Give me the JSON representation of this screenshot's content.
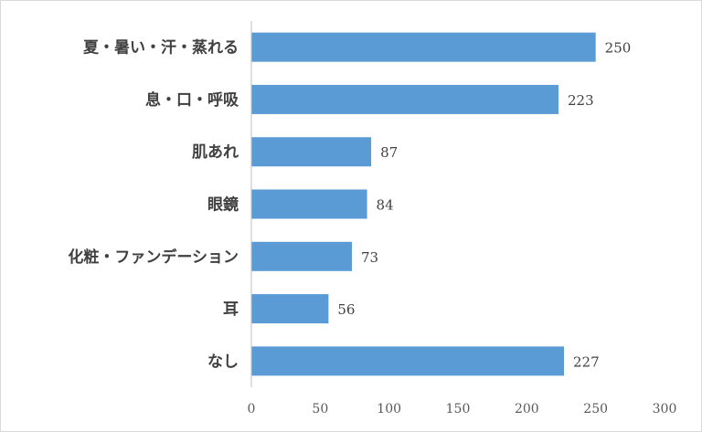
{
  "chart_data": {
    "type": "bar",
    "orientation": "horizontal",
    "categories": [
      "夏・暑い・汗・蒸れる",
      "息・口・呼吸",
      "肌あれ",
      "眼鏡",
      "化粧・ファンデーション",
      "耳",
      "なし"
    ],
    "values": [
      250,
      223,
      87,
      84,
      73,
      56,
      227
    ],
    "data_labels": [
      "250",
      "223",
      "87",
      "84",
      "73",
      "56",
      "227"
    ],
    "xlim": [
      0,
      300
    ],
    "xticks": [
      0,
      50,
      100,
      150,
      200,
      250,
      300
    ],
    "xtick_labels": [
      "0",
      "50",
      "100",
      "150",
      "200",
      "250",
      "300"
    ],
    "title": "",
    "xlabel": "",
    "ylabel": "",
    "grid": false,
    "legend": "none",
    "bar_color": "#5b9bd5",
    "axis_color": "#bfbfbf"
  }
}
